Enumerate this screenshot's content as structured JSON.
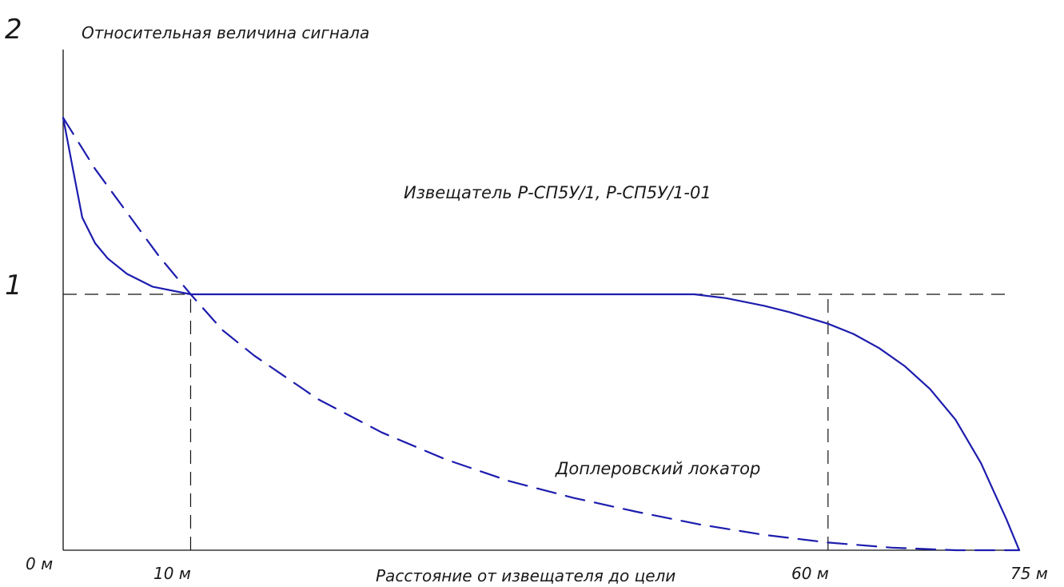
{
  "chart_data": {
    "type": "line",
    "title": "",
    "ylabel": "Относительная величина сигнала",
    "xlabel": "Расстояние от извещателя до цели",
    "x_unit": "м",
    "xlim": [
      0,
      75
    ],
    "ylim": [
      0,
      2
    ],
    "x_ticks": [
      "0 м",
      "10 м",
      "60 м",
      "75 м"
    ],
    "y_ticks": [
      "1",
      "2"
    ],
    "reference_lines": {
      "y": 1,
      "x": [
        10,
        60
      ]
    },
    "annotations": [
      "Извещатель Р-СП5У/1, Р-СП5У/1-01",
      "Доплеровский локатор"
    ],
    "series": [
      {
        "name": "Извещатель Р-СП5У/1, Р-СП5У/1-01",
        "style": "solid",
        "color": "#1d1dae",
        "x": [
          0,
          0.8,
          1.5,
          2.5,
          3.5,
          5,
          7,
          10,
          30,
          49.5,
          52,
          55,
          57,
          60,
          62,
          64,
          66,
          68,
          70,
          72,
          73,
          74,
          75
        ],
        "y": [
          1.69,
          1.48,
          1.3,
          1.2,
          1.14,
          1.08,
          1.03,
          1.0,
          1.0,
          1.0,
          0.985,
          0.955,
          0.93,
          0.885,
          0.845,
          0.79,
          0.72,
          0.63,
          0.51,
          0.34,
          0.23,
          0.12,
          0.0
        ]
      },
      {
        "name": "Доплеровский локатор",
        "style": "dashed",
        "color": "#1d1dae",
        "x": [
          0,
          2.5,
          5,
          7.5,
          10,
          12.5,
          15,
          20,
          25,
          30,
          35,
          40,
          45,
          50,
          55,
          60,
          65,
          70,
          75
        ],
        "y": [
          1.69,
          1.49,
          1.32,
          1.15,
          1.0,
          0.86,
          0.76,
          0.59,
          0.46,
          0.355,
          0.27,
          0.205,
          0.15,
          0.1,
          0.06,
          0.03,
          0.01,
          0.0,
          0.0
        ]
      }
    ]
  }
}
